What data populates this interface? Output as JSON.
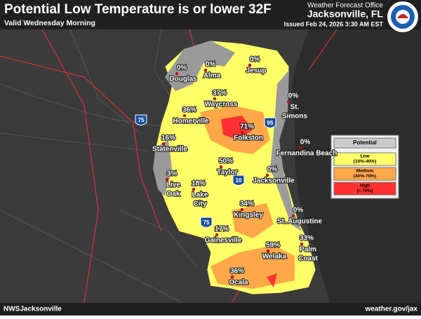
{
  "header": {
    "title": "Potential Low Temperature is or lower 32F",
    "subtitle": "Valid Wednesday Morning",
    "office_label": "Weather Forecast Office",
    "office": "Jacksonville, FL",
    "issued": "Issued Feb 24, 2026 3:30 AM EST"
  },
  "cities": [
    {
      "percent": "0%",
      "name": [
        "Douglas"
      ]
    },
    {
      "percent": "0%",
      "name": [
        "Alma"
      ]
    },
    {
      "percent": "0%",
      "name": [
        "Jesup"
      ]
    },
    {
      "percent": "37%",
      "name": [
        "Waycross"
      ]
    },
    {
      "percent": "0%",
      "name": [
        "St.",
        "Simons"
      ]
    },
    {
      "percent": "36%",
      "name": [
        "Homerville"
      ]
    },
    {
      "percent": "71%",
      "name": [
        "Folkston"
      ]
    },
    {
      "percent": "16%",
      "name": [
        "Statenville"
      ]
    },
    {
      "percent": "0%",
      "name": [
        "Fernandina Beach"
      ]
    },
    {
      "percent": "50%",
      "name": [
        "Taylor"
      ]
    },
    {
      "percent": "0%",
      "name": [
        "Jacksonville"
      ]
    },
    {
      "percent": "3%",
      "name": [
        "Live",
        "Oak"
      ]
    },
    {
      "percent": "18%",
      "name": [
        "Lake",
        "City"
      ]
    },
    {
      "percent": "34%",
      "name": [
        "Kingsley"
      ]
    },
    {
      "percent": "0%",
      "name": [
        "St. Augustine"
      ]
    },
    {
      "percent": "17%",
      "name": [
        "Gainesville"
      ]
    },
    {
      "percent": "33%",
      "name": [
        "Palm",
        "Coast"
      ]
    },
    {
      "percent": "59%",
      "name": [
        "Welaka"
      ]
    },
    {
      "percent": "36%",
      "name": [
        "Ocala"
      ]
    }
  ],
  "interstates": [
    "75",
    "95",
    "10",
    "75"
  ],
  "legend": {
    "title": "Potential",
    "items": [
      {
        "name": "Low",
        "range": "(10%-40%)",
        "color": "#ffff66"
      },
      {
        "name": "Medium",
        "range": "(40%-70%)",
        "color": "#ffa84a"
      },
      {
        "name": "High",
        "range": "(> 70%)",
        "color": "#ff3030"
      }
    ]
  },
  "footer": {
    "left": "NWSJacksonville",
    "right": "weather.gov/jax"
  }
}
